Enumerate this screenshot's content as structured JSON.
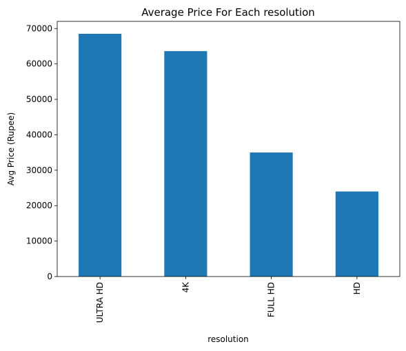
{
  "chart_data": {
    "type": "bar",
    "title": "Average Price For Each resolution",
    "xlabel": "resolution",
    "ylabel": "Avg Price (Rupee)",
    "categories": [
      "ULTRA HD",
      "4K",
      "FULL HD",
      "HD"
    ],
    "values": [
      68500,
      63600,
      35000,
      24000
    ],
    "ylim": [
      0,
      72000
    ],
    "yticks": [
      0,
      10000,
      20000,
      30000,
      40000,
      50000,
      60000,
      70000
    ],
    "grid": false,
    "legend": "none",
    "bar_color": "#1f77b4"
  }
}
